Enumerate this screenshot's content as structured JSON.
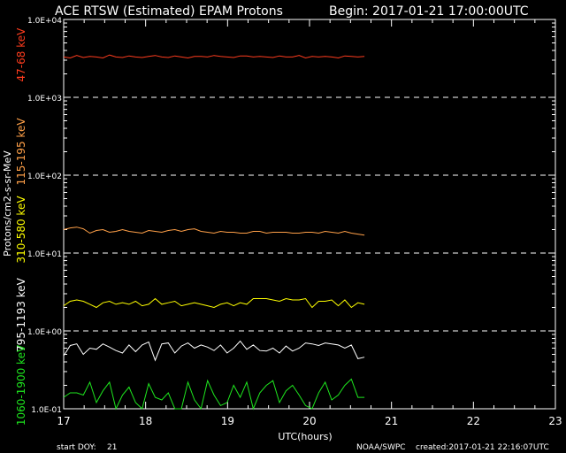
{
  "chart_data": {
    "type": "line",
    "title": "ACE RTSW (Estimated) EPAM Protons",
    "begin_label": "Begin: 2017-01-21 17:00:00UTC",
    "xlabel": "UTC(hours)",
    "ylabel": "Protons/cm2-s-sr-MeV",
    "xlim": [
      17,
      23
    ],
    "ylim": [
      0.1,
      10000
    ],
    "y_scale": "log",
    "x_ticks": [
      "17",
      "18",
      "19",
      "20",
      "21",
      "22",
      "23"
    ],
    "y_ticks": [
      "1.0E+04",
      "1.0E+03",
      "1.0E+02",
      "1.0E+01",
      "1.0E+00",
      "1.0E-01"
    ],
    "grid": "dashed horizontal at decades",
    "series": [
      {
        "name": "47-68 keV",
        "color": "#ff3c1e",
        "label_color": "#ff3c1e",
        "values": [
          3300,
          3200,
          3450,
          3250,
          3350,
          3300,
          3200,
          3500,
          3300,
          3250,
          3400,
          3300,
          3250,
          3350,
          3450,
          3300,
          3250,
          3400,
          3300,
          3200,
          3350,
          3350,
          3300,
          3450,
          3350,
          3300,
          3250,
          3400,
          3400,
          3300,
          3350,
          3300,
          3250,
          3400,
          3300,
          3300,
          3450,
          3200,
          3350,
          3300,
          3350,
          3300,
          3200,
          3400,
          3350,
          3300,
          3350
        ]
      },
      {
        "name": "115-195 keV",
        "color": "#ffa048",
        "label_color": "#ffa048",
        "values": [
          20,
          21,
          21.5,
          20.5,
          18,
          19.5,
          20,
          18.5,
          19,
          20,
          19,
          18.5,
          18,
          19.5,
          19,
          18.5,
          19.5,
          20,
          19,
          20,
          20.5,
          19,
          18.5,
          18,
          19,
          18.5,
          18.5,
          18,
          18,
          19,
          19,
          18,
          18.5,
          18.5,
          18.5,
          18,
          18,
          18.5,
          18.5,
          18,
          19,
          18.5,
          18,
          19,
          18,
          17.5,
          17
        ]
      },
      {
        "name": "310-580 keV",
        "color": "#ffff00",
        "label_color": "#ffff00",
        "values": [
          2.1,
          2.4,
          2.5,
          2.4,
          2.2,
          2.0,
          2.3,
          2.4,
          2.2,
          2.3,
          2.2,
          2.4,
          2.1,
          2.2,
          2.6,
          2.2,
          2.3,
          2.4,
          2.1,
          2.2,
          2.3,
          2.2,
          2.1,
          2.0,
          2.2,
          2.3,
          2.1,
          2.3,
          2.2,
          2.6,
          2.6,
          2.6,
          2.5,
          2.4,
          2.6,
          2.5,
          2.5,
          2.6,
          2.0,
          2.4,
          2.4,
          2.5,
          2.1,
          2.5,
          2.0,
          2.3,
          2.2
        ]
      },
      {
        "name": "795-1193 keV",
        "color": "#ffffff",
        "label_color": "#ffffff",
        "values": [
          0.48,
          0.65,
          0.68,
          0.5,
          0.6,
          0.58,
          0.68,
          0.62,
          0.56,
          0.52,
          0.66,
          0.54,
          0.66,
          0.72,
          0.42,
          0.68,
          0.7,
          0.52,
          0.64,
          0.7,
          0.6,
          0.66,
          0.62,
          0.56,
          0.66,
          0.52,
          0.6,
          0.74,
          0.58,
          0.66,
          0.56,
          0.55,
          0.6,
          0.52,
          0.64,
          0.55,
          0.6,
          0.7,
          0.68,
          0.65,
          0.7,
          0.68,
          0.66,
          0.6,
          0.66,
          0.44,
          0.46
        ]
      },
      {
        "name": "1060-1900 keV",
        "color": "#1ee61e",
        "label_color": "#1ee61e",
        "values": [
          0.14,
          0.16,
          0.16,
          0.15,
          0.22,
          0.12,
          0.17,
          0.22,
          0.1,
          0.15,
          0.19,
          0.12,
          0.1,
          0.21,
          0.14,
          0.13,
          0.16,
          0.1,
          0.1,
          0.22,
          0.13,
          0.1,
          0.23,
          0.15,
          0.11,
          0.12,
          0.2,
          0.14,
          0.22,
          0.1,
          0.16,
          0.2,
          0.23,
          0.12,
          0.17,
          0.2,
          0.15,
          0.11,
          0.1,
          0.16,
          0.22,
          0.13,
          0.15,
          0.2,
          0.24,
          0.14,
          0.14
        ]
      }
    ]
  },
  "footer": {
    "start_doy_label": "start DOY:",
    "start_doy_value": "21",
    "source": "NOAA/SWPC",
    "created": "created:2017-01-21 22:16:07UTC"
  }
}
